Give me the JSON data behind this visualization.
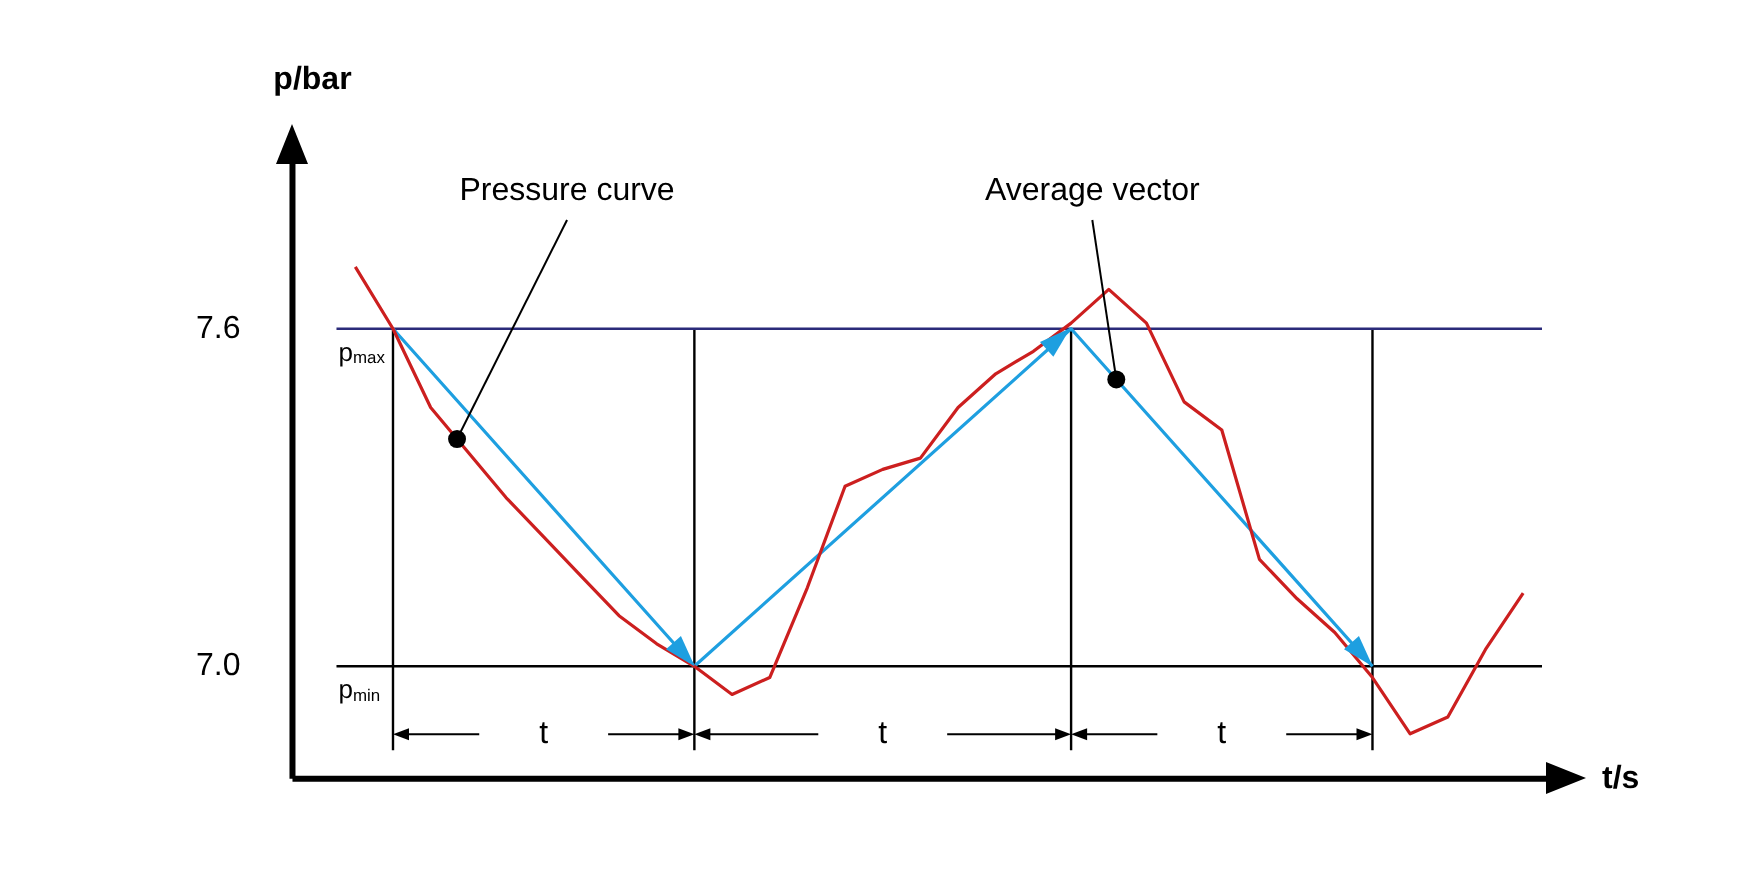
{
  "chart_data": {
    "type": "line",
    "xlabel": "t/s",
    "ylabel": "p/bar",
    "categories": [
      null,
      null,
      null,
      null,
      null,
      null,
      null,
      null,
      null,
      null,
      null,
      null,
      null,
      null,
      null,
      null,
      null,
      null,
      null,
      null,
      null,
      null,
      null,
      null,
      null,
      null,
      null,
      null,
      null,
      null,
      null,
      null
    ],
    "ylim": [
      6.8,
      7.9
    ],
    "yticks": [
      {
        "value": 7.0,
        "label": "7.0"
      },
      {
        "value": 7.6,
        "label": "7.6"
      }
    ],
    "tick_labels": "y",
    "grid": false,
    "legend": false,
    "marker": "none",
    "series": [
      {
        "name": "Pressure curve",
        "color": "#cc1f1f",
        "values": [
          7.71,
          7.6,
          7.46,
          7.38,
          7.3,
          7.23,
          7.16,
          7.09,
          7.04,
          7.0,
          6.95,
          6.98,
          7.14,
          7.32,
          7.35,
          7.37,
          7.46,
          7.52,
          7.56,
          7.61,
          7.67,
          7.61,
          7.47,
          7.42,
          7.19,
          7.12,
          7.06,
          6.98,
          6.88,
          6.91,
          7.03,
          7.13
        ]
      },
      {
        "name": "Average vector",
        "color": "#1e9fe0",
        "values": [
          null,
          7.6,
          null,
          null,
          null,
          null,
          null,
          null,
          null,
          7.0,
          null,
          null,
          null,
          null,
          null,
          null,
          null,
          null,
          null,
          7.6,
          null,
          null,
          null,
          null,
          null,
          null,
          null,
          7.0,
          null,
          null,
          null,
          null
        ]
      }
    ],
    "ref_lines": [
      {
        "axis": "y",
        "value": 7.6,
        "label": "p$_{max}$",
        "color": "#2b2b7a"
      },
      {
        "axis": "y",
        "value": 7.0,
        "label": "p$_{min}$",
        "color": "#000000"
      }
    ],
    "annotations": [
      "t",
      "t",
      "t"
    ]
  }
}
